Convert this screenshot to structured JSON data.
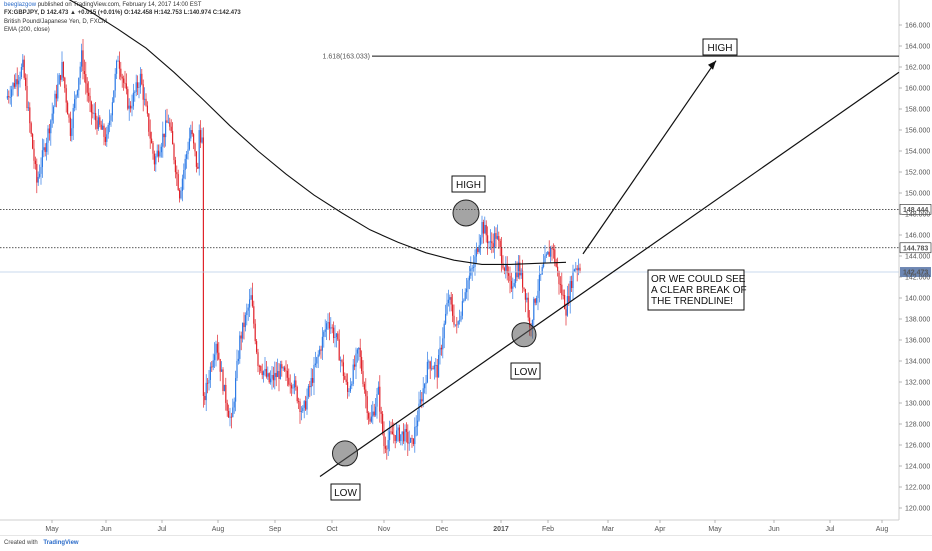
{
  "header": {
    "author": "beeglazgow",
    "published": "published on TradingView.com, February 14, 2017 14:00 EST",
    "symbol_line": "FX:GBPJPY, D 142.473 ▲ +0.015 (+0.01%) O:142.458 H:142.753 L:140.974 C:142.473",
    "title_line": "British Pound/Japanese Yen, D, FXCM",
    "indicator_line": "EMA (200, close)"
  },
  "footer": {
    "created_with": "Created with",
    "brand": "TradingView"
  },
  "colors": {
    "up": "#2e7be6",
    "down": "#e0242b",
    "ema": "#111111",
    "price_line": "#b9cde6",
    "current_price_bg": "#6d87b3"
  },
  "chart_data": {
    "type": "candlestick",
    "symbol": "FX:GBPJPY",
    "timeframe": "D",
    "ylim": [
      119,
      167
    ],
    "y_ticks": [
      120,
      122,
      124,
      126,
      128,
      130,
      132,
      134,
      136,
      138,
      140,
      142,
      144,
      146,
      148,
      150,
      152,
      154,
      156,
      158,
      160,
      162,
      164,
      166
    ],
    "y_tick_labels": [
      "120.000",
      "122.000",
      "124.000",
      "126.000",
      "128.000",
      "130.000",
      "132.000",
      "134.000",
      "136.000",
      "138.000",
      "140.000",
      "142.000",
      "144.000",
      "146.000",
      "148.000",
      "150.000",
      "152.000",
      "154.000",
      "156.000",
      "158.000",
      "160.000",
      "162.000",
      "164.000",
      "166.000"
    ],
    "x_labels": [
      "May",
      "Jun",
      "Jul",
      "Aug",
      "Sep",
      "Oct",
      "Nov",
      "Dec",
      "2017",
      "Feb",
      "Mar",
      "Apr",
      "May",
      "Jun",
      "Jul",
      "Aug"
    ],
    "price_levels": [
      {
        "label": "148.444",
        "value": 148.444,
        "style": "dotted"
      },
      {
        "label": "144.783",
        "value": 144.783,
        "style": "dotted"
      },
      {
        "label": "142.473",
        "value": 142.473,
        "style": "current"
      }
    ],
    "fib_level": {
      "label": "1.618(163.033)",
      "value": 163.033
    },
    "annotations": {
      "high_top": "HIGH",
      "high_mid": "HIGH",
      "low_bottom": "LOW",
      "low_mid": "LOW",
      "note": [
        "OR WE COULD SEE",
        "A CLEAR BREAK OF",
        "THE TRENDLINE!"
      ]
    },
    "trendline": {
      "from": [
        "Oct",
        123.0
      ],
      "to": [
        "Aug",
        161.5
      ]
    },
    "ema_points": [
      [
        0,
        170.5
      ],
      [
        20,
        169.8
      ],
      [
        40,
        168.8
      ],
      [
        60,
        167.3
      ],
      [
        80,
        165.6
      ],
      [
        100,
        163.8
      ],
      [
        120,
        161.5
      ],
      [
        140,
        159.0
      ],
      [
        160,
        156.4
      ],
      [
        180,
        154.0
      ],
      [
        200,
        151.8
      ],
      [
        220,
        149.8
      ],
      [
        240,
        148.1
      ],
      [
        260,
        146.5
      ],
      [
        280,
        145.3
      ],
      [
        300,
        144.3
      ],
      [
        320,
        143.6
      ],
      [
        340,
        143.2
      ],
      [
        360,
        143.2
      ],
      [
        380,
        143.3
      ],
      [
        400,
        143.4
      ]
    ],
    "candle_path": [
      [
        0,
        159
      ],
      [
        12,
        162
      ],
      [
        22,
        151
      ],
      [
        32,
        157
      ],
      [
        40,
        162
      ],
      [
        46,
        156
      ],
      [
        54,
        163
      ],
      [
        60,
        158
      ],
      [
        72,
        155
      ],
      [
        80,
        163
      ],
      [
        88,
        158
      ],
      [
        96,
        161
      ],
      [
        106,
        153
      ],
      [
        116,
        157
      ],
      [
        124,
        150
      ],
      [
        132,
        156
      ],
      [
        137,
        152
      ],
      [
        138,
        156
      ],
      [
        140,
        155
      ],
      [
        141,
        130
      ],
      [
        144,
        132
      ],
      [
        150,
        136
      ],
      [
        156,
        131
      ],
      [
        161,
        128
      ],
      [
        167,
        136
      ],
      [
        175,
        140
      ],
      [
        180,
        134
      ],
      [
        188,
        132
      ],
      [
        196,
        133
      ],
      [
        205,
        132
      ],
      [
        212,
        129
      ],
      [
        222,
        134
      ],
      [
        230,
        138
      ],
      [
        236,
        136
      ],
      [
        244,
        131
      ],
      [
        252,
        135
      ],
      [
        260,
        128
      ],
      [
        266,
        131
      ],
      [
        270,
        126
      ],
      [
        276,
        127
      ],
      [
        284,
        127
      ],
      [
        290,
        126
      ],
      [
        296,
        130
      ],
      [
        302,
        134
      ],
      [
        308,
        133
      ],
      [
        316,
        140
      ],
      [
        322,
        137
      ],
      [
        328,
        141
      ],
      [
        334,
        143
      ],
      [
        340,
        147
      ],
      [
        346,
        145
      ],
      [
        350,
        146
      ],
      [
        356,
        143
      ],
      [
        360,
        141
      ],
      [
        366,
        143
      ],
      [
        372,
        140
      ],
      [
        374,
        137
      ],
      [
        378,
        140
      ],
      [
        384,
        143
      ],
      [
        390,
        145
      ],
      [
        396,
        141
      ],
      [
        400,
        139
      ],
      [
        406,
        143
      ],
      [
        410,
        143
      ]
    ]
  }
}
